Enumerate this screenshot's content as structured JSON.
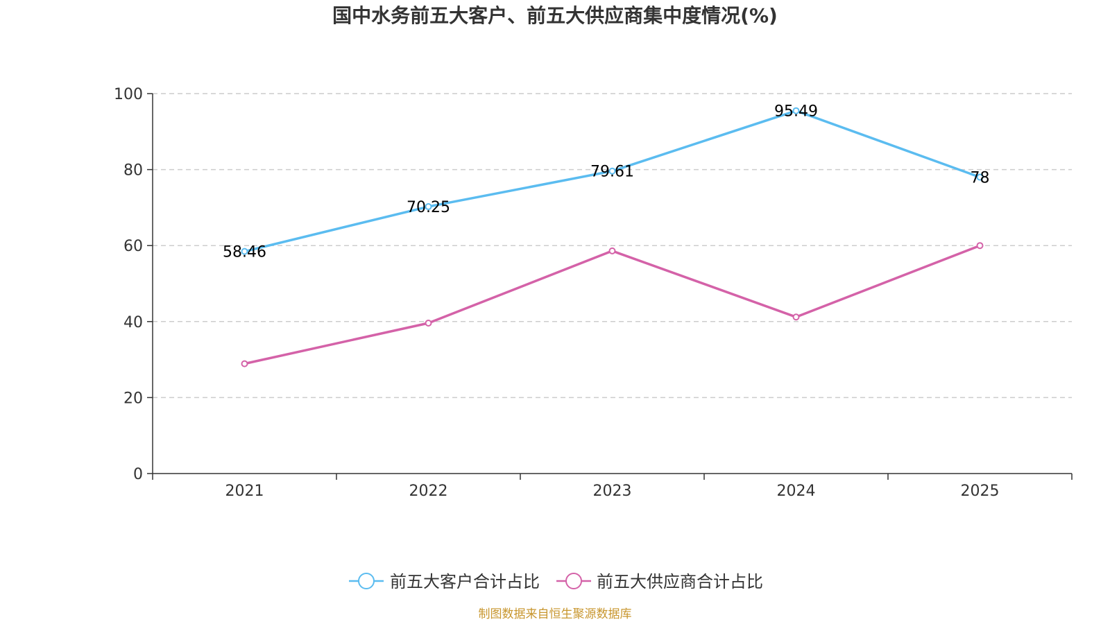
{
  "chart_data": {
    "type": "line",
    "title": "国中水务前五大客户、前五大供应商集中度情况(%)",
    "categories": [
      "2021",
      "2022",
      "2023",
      "2024",
      "2025"
    ],
    "ylim": [
      0,
      100
    ],
    "yticks": [
      0,
      20,
      40,
      60,
      80,
      100
    ],
    "grid": true,
    "legend_position": "bottom",
    "series": [
      {
        "name": "前五大客户合计占比",
        "color": "#5bbcf0",
        "values": [
          58.46,
          70.25,
          79.61,
          95.49,
          78
        ],
        "labels": [
          "58.46",
          "70.25",
          "79.61",
          "95.49",
          "78"
        ]
      },
      {
        "name": "前五大供应商合计占比",
        "color": "#d462a8",
        "values": [
          28.9,
          39.6,
          58.6,
          41.2,
          60.0
        ]
      }
    ]
  },
  "source": "制图数据来自恒生聚源数据库"
}
